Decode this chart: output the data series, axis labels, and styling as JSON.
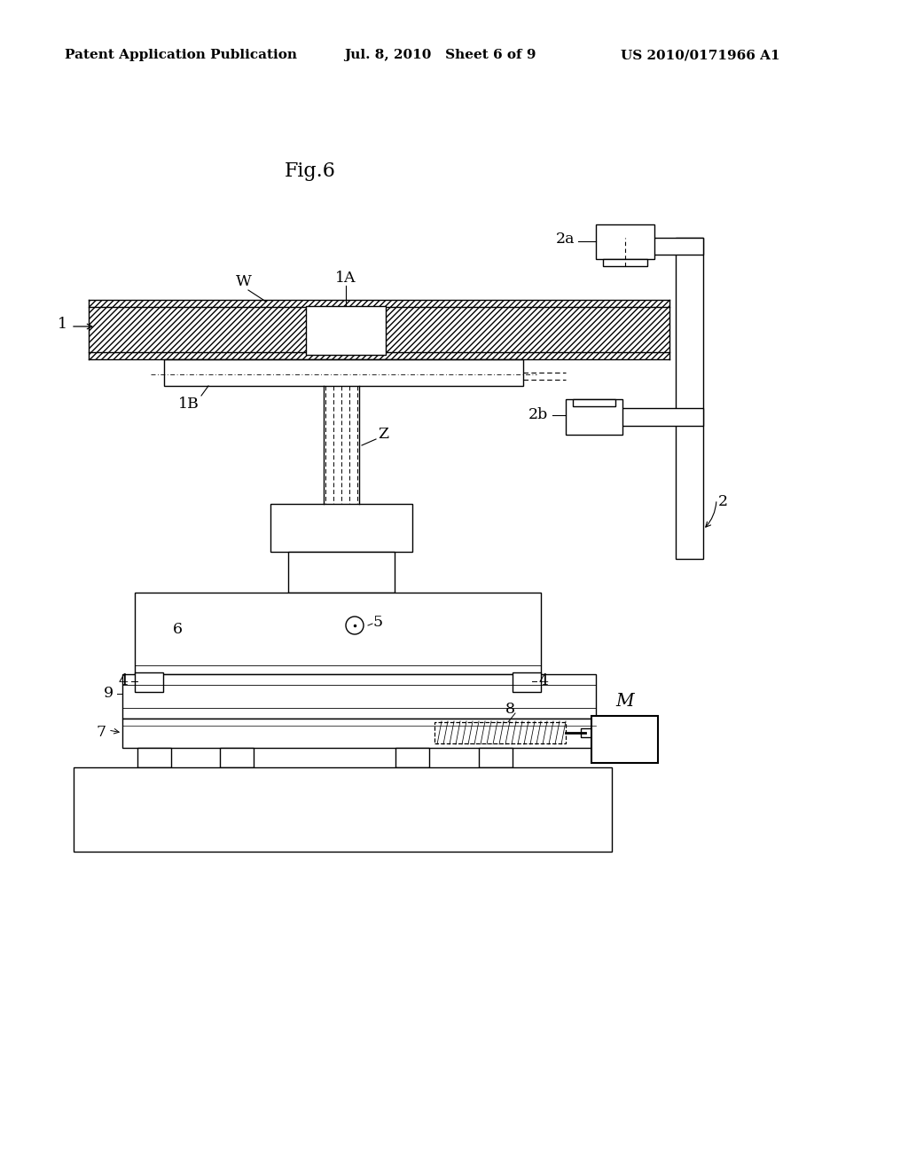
{
  "background_color": "#ffffff",
  "header_left": "Patent Application Publication",
  "header_center": "Jul. 8, 2010   Sheet 6 of 9",
  "header_right": "US 2010/0171966 A1",
  "fig_title": "Fig.6",
  "header_fontsize": 11,
  "fig_title_fontsize": 16
}
